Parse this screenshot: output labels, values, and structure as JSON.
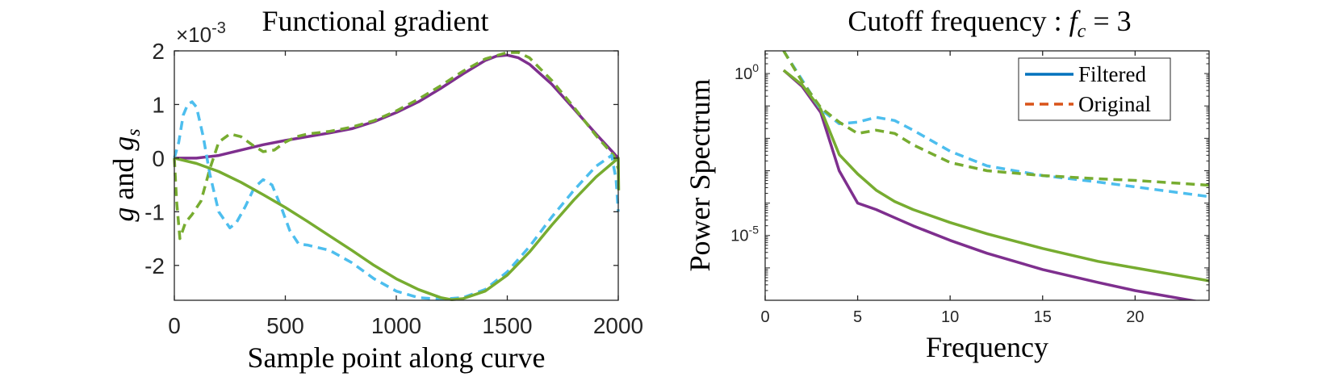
{
  "colors": {
    "purple": "#7e2f8e",
    "green": "#77ac30",
    "cyan": "#4dbeee",
    "blue": "#0072bd",
    "orange": "#d95319",
    "axis": "#262626"
  },
  "chart_data": [
    {
      "type": "line",
      "title": "Functional gradient",
      "xlabel": "Sample point along curve",
      "ylabel_main": "g",
      "ylabel_and": " and ",
      "ylabel_sub_base": "g",
      "ylabel_sub": "s",
      "exponent_times": "×10",
      "exponent_power": "-3",
      "xlim": [
        0,
        2000
      ],
      "ylim": [
        -2.65,
        2.0
      ],
      "xticks": [
        0,
        500,
        1000,
        1500,
        2000
      ],
      "xtick_labels": [
        "0",
        "500",
        "1000",
        "1500",
        "2000"
      ],
      "yticks": [
        -2,
        -1,
        0,
        1,
        2
      ],
      "ytick_labels": [
        "-2",
        "-1",
        "0",
        "1",
        "2"
      ],
      "series": [
        {
          "style": "solid",
          "color": "purple",
          "x": [
            0,
            100,
            200,
            300,
            400,
            500,
            600,
            700,
            800,
            900,
            1000,
            1100,
            1200,
            1300,
            1400,
            1450,
            1500,
            1550,
            1600,
            1700,
            1800,
            1900,
            2000
          ],
          "y": [
            0,
            0,
            0.05,
            0.15,
            0.25,
            0.33,
            0.4,
            0.47,
            0.55,
            0.68,
            0.85,
            1.05,
            1.3,
            1.57,
            1.82,
            1.9,
            1.92,
            1.87,
            1.75,
            1.38,
            0.92,
            0.45,
            0
          ]
        },
        {
          "style": "dashed",
          "color": "green",
          "x": [
            0,
            10,
            25,
            50,
            80,
            120,
            160,
            200,
            250,
            300,
            350,
            400,
            450,
            500,
            550,
            600,
            700,
            800,
            900,
            1000,
            1100,
            1200,
            1300,
            1400,
            1500,
            1550,
            1600,
            1700,
            1800,
            1900,
            1980,
            2000
          ],
          "y": [
            0,
            -0.8,
            -1.5,
            -1.2,
            -1.05,
            -0.8,
            -0.2,
            0.3,
            0.45,
            0.4,
            0.25,
            0.12,
            0.15,
            0.3,
            0.4,
            0.45,
            0.5,
            0.58,
            0.7,
            0.88,
            1.1,
            1.35,
            1.62,
            1.85,
            1.97,
            1.97,
            1.87,
            1.45,
            0.95,
            0.42,
            0.05,
            -0.2
          ]
        },
        {
          "style": "dashed",
          "color": "cyan",
          "x": [
            0,
            20,
            40,
            60,
            80,
            100,
            130,
            160,
            200,
            250,
            280,
            320,
            360,
            400,
            440,
            480,
            520,
            560,
            600,
            700,
            800,
            900,
            1000,
            1100,
            1200,
            1300,
            1400,
            1500,
            1600,
            1700,
            1800,
            1900,
            1970,
            1990,
            2000
          ],
          "y": [
            0,
            0.3,
            0.8,
            1.0,
            1.05,
            0.95,
            0.4,
            -0.3,
            -1.0,
            -1.3,
            -1.2,
            -0.9,
            -0.55,
            -0.4,
            -0.5,
            -0.9,
            -1.35,
            -1.6,
            -1.62,
            -1.72,
            -1.95,
            -2.25,
            -2.48,
            -2.6,
            -2.63,
            -2.6,
            -2.45,
            -2.12,
            -1.65,
            -1.1,
            -0.6,
            -0.15,
            0.05,
            -0.4,
            -1.0
          ]
        },
        {
          "style": "solid",
          "color": "green",
          "x": [
            0,
            100,
            200,
            300,
            400,
            500,
            600,
            700,
            800,
            900,
            1000,
            1100,
            1200,
            1250,
            1300,
            1400,
            1500,
            1600,
            1700,
            1800,
            1900,
            2000,
            2002
          ],
          "y": [
            0,
            -0.1,
            -0.25,
            -0.45,
            -0.68,
            -0.92,
            -1.18,
            -1.45,
            -1.72,
            -2.0,
            -2.25,
            -2.45,
            -2.6,
            -2.64,
            -2.62,
            -2.48,
            -2.18,
            -1.75,
            -1.25,
            -0.78,
            -0.35,
            0,
            -0.6
          ]
        }
      ]
    },
    {
      "type": "line",
      "title_prefix": "Cutoff frequency : ",
      "title_var": "f",
      "title_sub": "c",
      "title_suffix": " = 3",
      "xlabel": "Frequency",
      "ylabel": "Power Spectrum",
      "yscale": "log",
      "xlim": [
        0,
        24
      ],
      "ylim_log10": [
        -7,
        0.7
      ],
      "xticks": [
        0,
        5,
        10,
        15,
        20
      ],
      "xtick_labels": [
        "0",
        "5",
        "10",
        "15",
        "20"
      ],
      "ytick_base": "10",
      "yticks_log10": [
        0,
        -5
      ],
      "ytick_powers": [
        "0",
        "-5"
      ],
      "legend_position": "top-right",
      "legend": [
        {
          "label": "Filtered",
          "style": "solid",
          "color": "blue"
        },
        {
          "label": "Original",
          "style": "dashed",
          "color": "orange"
        }
      ],
      "series": [
        {
          "style": "solid",
          "color": "purple",
          "x": [
            1,
            2,
            3,
            4,
            5,
            6,
            7,
            8,
            10,
            12,
            15,
            18,
            20,
            24
          ],
          "log10y": [
            0.1,
            -0.4,
            -1.2,
            -3.0,
            -4.0,
            -4.2,
            -4.45,
            -4.7,
            -5.15,
            -5.55,
            -6.05,
            -6.45,
            -6.7,
            -7.1
          ]
        },
        {
          "style": "solid",
          "color": "green",
          "x": [
            1,
            2,
            3,
            4,
            5,
            6,
            7,
            8,
            10,
            12,
            15,
            18,
            20,
            24
          ],
          "log10y": [
            0.1,
            -0.35,
            -1.1,
            -2.5,
            -3.1,
            -3.6,
            -3.95,
            -4.2,
            -4.6,
            -4.95,
            -5.4,
            -5.8,
            -6.0,
            -6.4
          ]
        },
        {
          "style": "dashed",
          "color": "cyan",
          "x": [
            1,
            2,
            3,
            4,
            5,
            6,
            7,
            8,
            10,
            12,
            15,
            18,
            20,
            24
          ],
          "log10y": [
            0.7,
            -0.2,
            -1.1,
            -1.55,
            -1.5,
            -1.35,
            -1.45,
            -1.75,
            -2.4,
            -2.85,
            -3.15,
            -3.35,
            -3.5,
            -3.8
          ]
        },
        {
          "style": "dashed",
          "color": "green",
          "x": [
            1,
            2,
            3,
            4,
            5,
            6,
            7,
            8,
            10,
            12,
            15,
            18,
            20,
            24
          ],
          "log10y": [
            0.7,
            -0.25,
            -1.05,
            -1.5,
            -1.85,
            -1.75,
            -1.85,
            -2.2,
            -2.75,
            -3.0,
            -3.15,
            -3.25,
            -3.3,
            -3.45
          ]
        }
      ]
    }
  ]
}
